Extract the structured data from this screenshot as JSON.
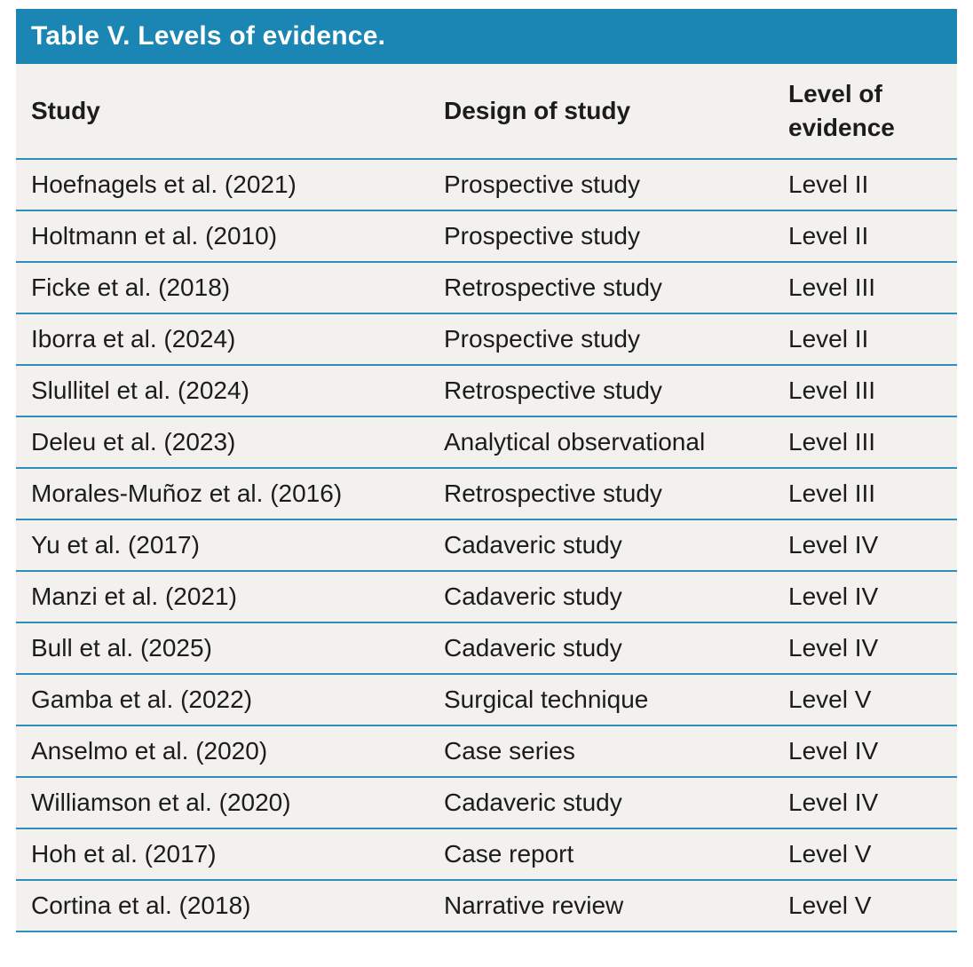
{
  "table": {
    "title": "Table V. Levels of evidence.",
    "columns": [
      "Study",
      "Design of study",
      "Level of evidence"
    ],
    "rows": [
      {
        "study": "Hoefnagels et al. (2021)",
        "design": "Prospective study",
        "level": "Level II"
      },
      {
        "study": "Holtmann et al. (2010)",
        "design": "Prospective study",
        "level": "Level II"
      },
      {
        "study": "Ficke et al. (2018)",
        "design": "Retrospective study",
        "level": "Level III"
      },
      {
        "study": "Iborra et al. (2024)",
        "design": "Prospective study",
        "level": "Level II"
      },
      {
        "study": "Slullitel et al. (2024)",
        "design": "Retrospective study",
        "level": "Level III"
      },
      {
        "study": "Deleu et al. (2023)",
        "design": "Analytical observational",
        "level": "Level III"
      },
      {
        "study": "Morales-Muñoz et al. (2016)",
        "design": "Retrospective study",
        "level": "Level III"
      },
      {
        "study": "Yu et al. (2017)",
        "design": "Cadaveric study",
        "level": "Level IV"
      },
      {
        "study": "Manzi et al. (2021)",
        "design": "Cadaveric study",
        "level": "Level IV"
      },
      {
        "study": "Bull et al. (2025)",
        "design": "Cadaveric study",
        "level": "Level IV"
      },
      {
        "study": "Gamba et al. (2022)",
        "design": "Surgical technique",
        "level": "Level V"
      },
      {
        "study": "Anselmo et al. (2020)",
        "design": "Case series",
        "level": "Level IV"
      },
      {
        "study": "Williamson et al. (2020)",
        "design": "Cadaveric study",
        "level": "Level IV"
      },
      {
        "study": "Hoh et al. (2017)",
        "design": "Case report",
        "level": "Level V"
      },
      {
        "study": "Cortina et al. (2018)",
        "design": "Narrative review",
        "level": "Level V"
      }
    ]
  },
  "colors": {
    "header_bg": "#1b86b3",
    "divider": "#2e8fba",
    "body_bg": "#f2f1ee",
    "text": "#1c1c1c",
    "title_text": "#ffffff"
  }
}
